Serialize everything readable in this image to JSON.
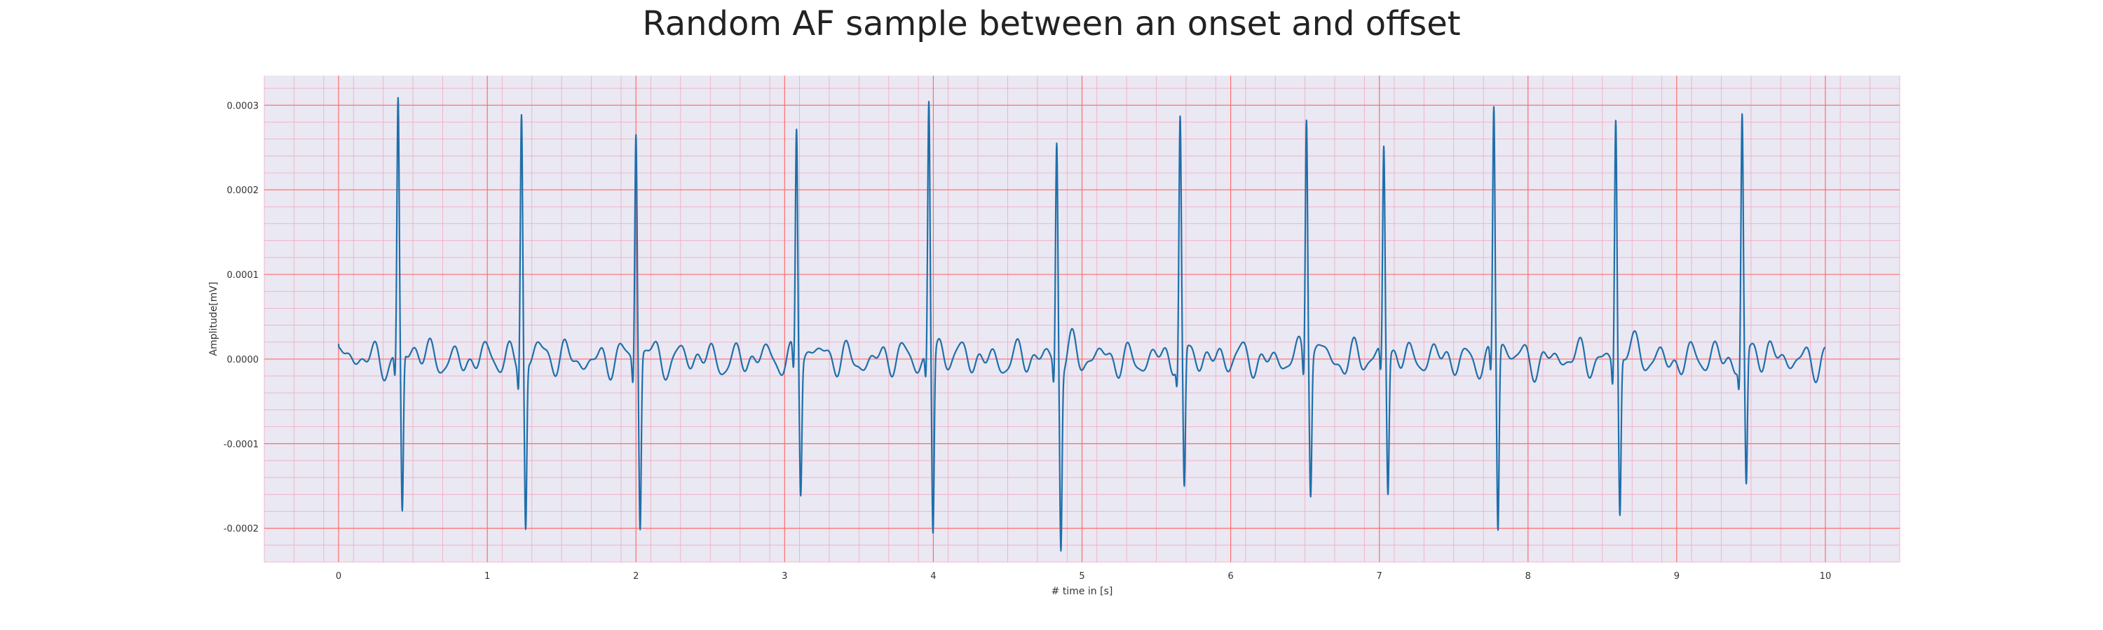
{
  "chart_data": {
    "type": "line",
    "title": "Random AF sample between an onset and offset",
    "xlabel": "# time in [s]",
    "ylabel": "Amplitude[mV]",
    "xlim": [
      -0.5,
      10.5
    ],
    "ylim": [
      -0.00024,
      0.000335
    ],
    "xticks": [
      0,
      1,
      2,
      3,
      4,
      5,
      6,
      7,
      8,
      9,
      10
    ],
    "yticks": [
      -0.0002,
      -0.0001,
      0.0,
      0.0001,
      0.0002,
      0.0003
    ],
    "xtick_labels": [
      "0",
      "1",
      "2",
      "3",
      "4",
      "5",
      "6",
      "7",
      "8",
      "9",
      "10"
    ],
    "ytick_labels": [
      "-0.0002",
      "-0.0001",
      "0.0000",
      "0.0001",
      "0.0002",
      "0.0003"
    ],
    "grid": true,
    "legend": "none",
    "colors": {
      "background": "#eae8f2",
      "major_grid": "#ff6b6b",
      "minor_grid": "#f2a8bf",
      "line": "#1f6fab"
    },
    "series": [
      {
        "beats": [
          {
            "t": 0.4,
            "r": 0.0003,
            "s": -0.00019
          },
          {
            "t": 1.23,
            "r": 0.000295,
            "s": -0.000198
          },
          {
            "t": 2.0,
            "r": 0.000275,
            "s": -0.0002
          },
          {
            "t": 3.08,
            "r": 0.000276,
            "s": -0.00015
          },
          {
            "t": 3.97,
            "r": 0.000307,
            "s": -0.000206
          },
          {
            "t": 4.83,
            "r": 0.000262,
            "s": -0.000212
          },
          {
            "t": 5.66,
            "r": 0.000277,
            "s": -0.000168
          },
          {
            "t": 6.51,
            "r": 0.000297,
            "s": -0.000153
          },
          {
            "t": 7.03,
            "r": 0.000247,
            "s": -0.00016
          },
          {
            "t": 7.77,
            "r": 0.000296,
            "s": -0.00021
          },
          {
            "t": 8.59,
            "r": 0.00029,
            "s": -0.000184
          },
          {
            "t": 9.44,
            "r": 0.000287,
            "s": -0.00016
          }
        ],
        "x_start": 0.0,
        "x_end": 10.0,
        "y_start": 1.8e-05,
        "baseline_amplitude": 2.2e-05
      }
    ]
  }
}
